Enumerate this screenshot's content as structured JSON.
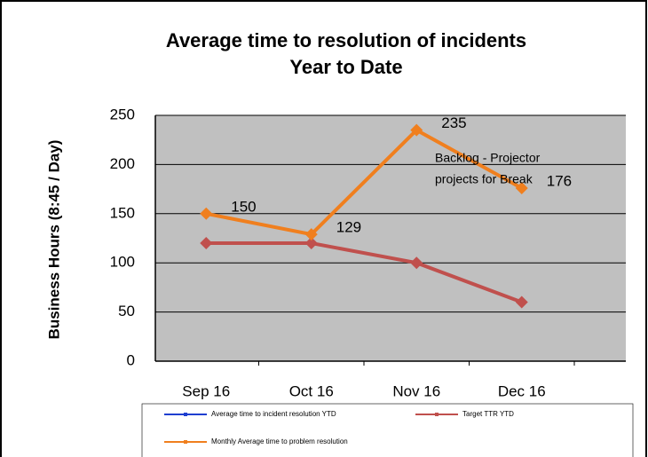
{
  "chart_data": {
    "type": "line",
    "title": [
      "Average time to resolution of incidents",
      "Year to Date"
    ],
    "y_label": "Business Hours (8:45 / Day)",
    "categories": [
      "Sep 16",
      "Oct 16",
      "Nov 16",
      "Dec 16"
    ],
    "series": [
      {
        "name": "Average time to incident resolution YTD",
        "color": "#1f3fd0",
        "values": [
          null,
          null,
          null,
          null
        ]
      },
      {
        "name": "Target TTR YTD",
        "color": "#c0504d",
        "values": [
          120,
          120,
          100,
          60
        ]
      },
      {
        "name": "Monthly Average time to problem resolution",
        "color": "#f07f1e",
        "values": [
          150,
          129,
          235,
          176
        ],
        "data_labels": true
      }
    ],
    "annotation": [
      "Backlog - Projector",
      "projects for Break"
    ],
    "ylim": [
      0,
      250
    ],
    "yticks": [
      0,
      50,
      100,
      150,
      200,
      250
    ],
    "grid": true
  }
}
